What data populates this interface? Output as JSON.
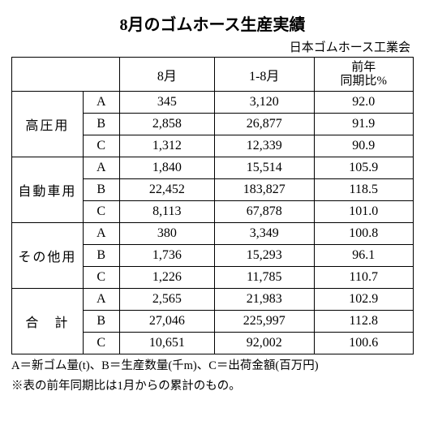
{
  "title": "8月のゴムホース生産実績",
  "source": "日本ゴムホース工業会",
  "columns": {
    "blank": "",
    "month": "8月",
    "cumulative": "1-8月",
    "yoy_line1": "前年",
    "yoy_line2": "同期比%"
  },
  "categories": [
    {
      "name": "高圧用",
      "rows": [
        {
          "sub": "A",
          "month": "345",
          "cum": "3,120",
          "yoy": "92.0"
        },
        {
          "sub": "B",
          "month": "2,858",
          "cum": "26,877",
          "yoy": "91.9"
        },
        {
          "sub": "C",
          "month": "1,312",
          "cum": "12,339",
          "yoy": "90.9"
        }
      ]
    },
    {
      "name": "自動車用",
      "rows": [
        {
          "sub": "A",
          "month": "1,840",
          "cum": "15,514",
          "yoy": "105.9"
        },
        {
          "sub": "B",
          "month": "22,452",
          "cum": "183,827",
          "yoy": "118.5"
        },
        {
          "sub": "C",
          "month": "8,113",
          "cum": "67,878",
          "yoy": "101.0"
        }
      ]
    },
    {
      "name": "その他用",
      "rows": [
        {
          "sub": "A",
          "month": "380",
          "cum": "3,349",
          "yoy": "100.8"
        },
        {
          "sub": "B",
          "month": "1,736",
          "cum": "15,293",
          "yoy": "96.1"
        },
        {
          "sub": "C",
          "month": "1,226",
          "cum": "11,785",
          "yoy": "110.7"
        }
      ]
    },
    {
      "name": "合　計",
      "rows": [
        {
          "sub": "A",
          "month": "2,565",
          "cum": "21,983",
          "yoy": "102.9"
        },
        {
          "sub": "B",
          "month": "27,046",
          "cum": "225,997",
          "yoy": "112.8"
        },
        {
          "sub": "C",
          "month": "10,651",
          "cum": "92,002",
          "yoy": "100.6"
        }
      ]
    }
  ],
  "footnote1": "A＝新ゴム量(t)、B＝生産数量(千m)、C＝出荷金額(百万円)",
  "footnote2": "※表の前年同期比は1月からの累計のもの。"
}
